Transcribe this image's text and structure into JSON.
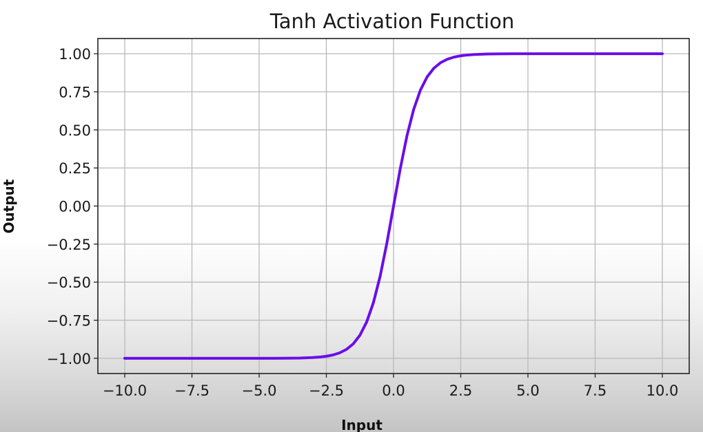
{
  "chart_data": {
    "type": "line",
    "title": "Tanh Activation Function",
    "xlabel": "Input",
    "ylabel": "Output",
    "xlim": [
      -11.0,
      11.0
    ],
    "ylim": [
      -1.1,
      1.1
    ],
    "x_ticks": [
      -10.0,
      -7.5,
      -5.0,
      -2.5,
      0.0,
      2.5,
      5.0,
      7.5,
      10.0
    ],
    "x_tick_labels": [
      "−10.0",
      "−7.5",
      "−5.0",
      "−2.5",
      "0.0",
      "2.5",
      "5.0",
      "7.5",
      "10.0"
    ],
    "y_ticks": [
      1.0,
      0.75,
      0.5,
      0.25,
      0.0,
      -0.25,
      -0.5,
      -0.75,
      -1.0
    ],
    "y_tick_labels": [
      "1.00",
      "0.75",
      "0.50",
      "0.25",
      "0.00",
      "−0.25",
      "−0.50",
      "−0.75",
      "−1.00"
    ],
    "grid": true,
    "series": [
      {
        "color": "#6a0ee8",
        "x": [
          -10.0,
          -9.0,
          -8.0,
          -7.0,
          -6.0,
          -5.0,
          -4.5,
          -4.0,
          -3.5,
          -3.0,
          -2.75,
          -2.5,
          -2.25,
          -2.0,
          -1.75,
          -1.5,
          -1.25,
          -1.0,
          -0.75,
          -0.5,
          -0.25,
          0.0,
          0.25,
          0.5,
          0.75,
          1.0,
          1.25,
          1.5,
          1.75,
          2.0,
          2.25,
          2.5,
          2.75,
          3.0,
          3.5,
          4.0,
          4.5,
          5.0,
          6.0,
          7.0,
          8.0,
          9.0,
          10.0
        ],
        "y": [
          -1.0,
          -1.0,
          -1.0,
          -1.0,
          -1.0,
          -0.9999,
          -0.9998,
          -0.9993,
          -0.9982,
          -0.9951,
          -0.9918,
          -0.9866,
          -0.978,
          -0.964,
          -0.9414,
          -0.9051,
          -0.8483,
          -0.7616,
          -0.6351,
          -0.4621,
          -0.2449,
          0.0,
          0.2449,
          0.4621,
          0.6351,
          0.7616,
          0.8483,
          0.9051,
          0.9414,
          0.964,
          0.978,
          0.9866,
          0.9918,
          0.9951,
          0.9982,
          0.9993,
          0.9998,
          0.9999,
          1.0,
          1.0,
          1.0,
          1.0,
          1.0
        ]
      }
    ]
  }
}
